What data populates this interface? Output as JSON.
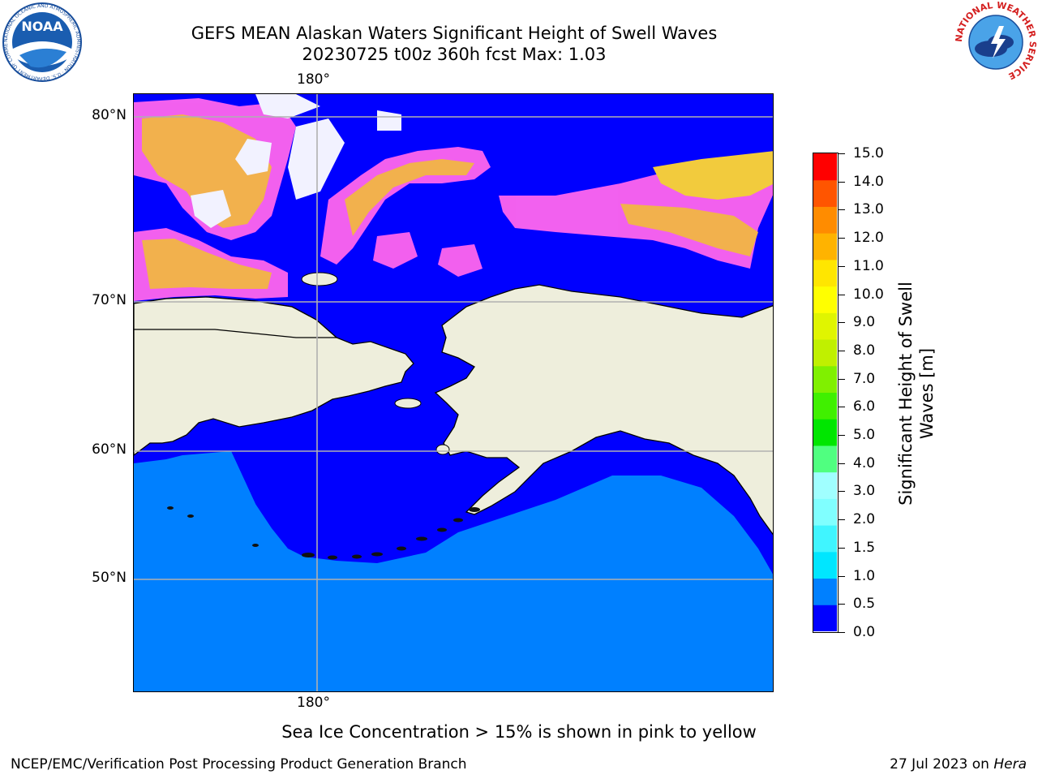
{
  "header": {
    "title_line1": "GEFS MEAN Alaskan Waters Significant Height of Swell Waves",
    "title_line2": "20230725 t00z 360h fcst   Max: 1.03"
  },
  "logos": {
    "left_text": "NOAA",
    "left_ring": "NATIONAL OCEANIC AND ATMOSPHERIC ADMINISTRATION · U.S. DEPARTMENT OF COMMERCE",
    "right_ring": "NATIONAL WEATHER SERVICE"
  },
  "map": {
    "lat_labels": [
      "80°N",
      "70°N",
      "60°N",
      "50°N"
    ],
    "lon_label_top": "180°",
    "lon_label_bottom": "180°",
    "colors": {
      "ocean_low": "#0000ff",
      "ocean_mid": "#0080ff",
      "land": "#eeeedc",
      "ice_pink": "#ff66ee",
      "ice_orange": "#ffbb44",
      "ice_yellow": "#ffd633",
      "grid": "#b0b0b0"
    }
  },
  "colorbar": {
    "title": "Significant Height of Swell Waves [m]",
    "ticks": [
      "15.0",
      "14.0",
      "13.0",
      "12.0",
      "11.0",
      "10.0",
      "9.0",
      "8.0",
      "7.0",
      "6.0",
      "5.0",
      "4.0",
      "3.0",
      "2.0",
      "1.5",
      "1.0",
      "0.5",
      "0.0"
    ],
    "colors": [
      "#0000ff",
      "#0080ff",
      "#00e6ff",
      "#40f5ff",
      "#80ffff",
      "#a0ffff",
      "#50ff80",
      "#00e600",
      "#40f000",
      "#80f000",
      "#c0f000",
      "#e0f500",
      "#ffff00",
      "#ffe600",
      "#ffb300",
      "#ff8c00",
      "#ff5500",
      "#ff2a00",
      "#ff0000"
    ]
  },
  "note": "Sea Ice Concentration > 15% is shown in pink to yellow",
  "footer": {
    "left": "NCEP/EMC/Verification Post Processing Product Generation Branch",
    "right_prefix": "27 Jul 2023 on ",
    "right_host": "Hera"
  }
}
